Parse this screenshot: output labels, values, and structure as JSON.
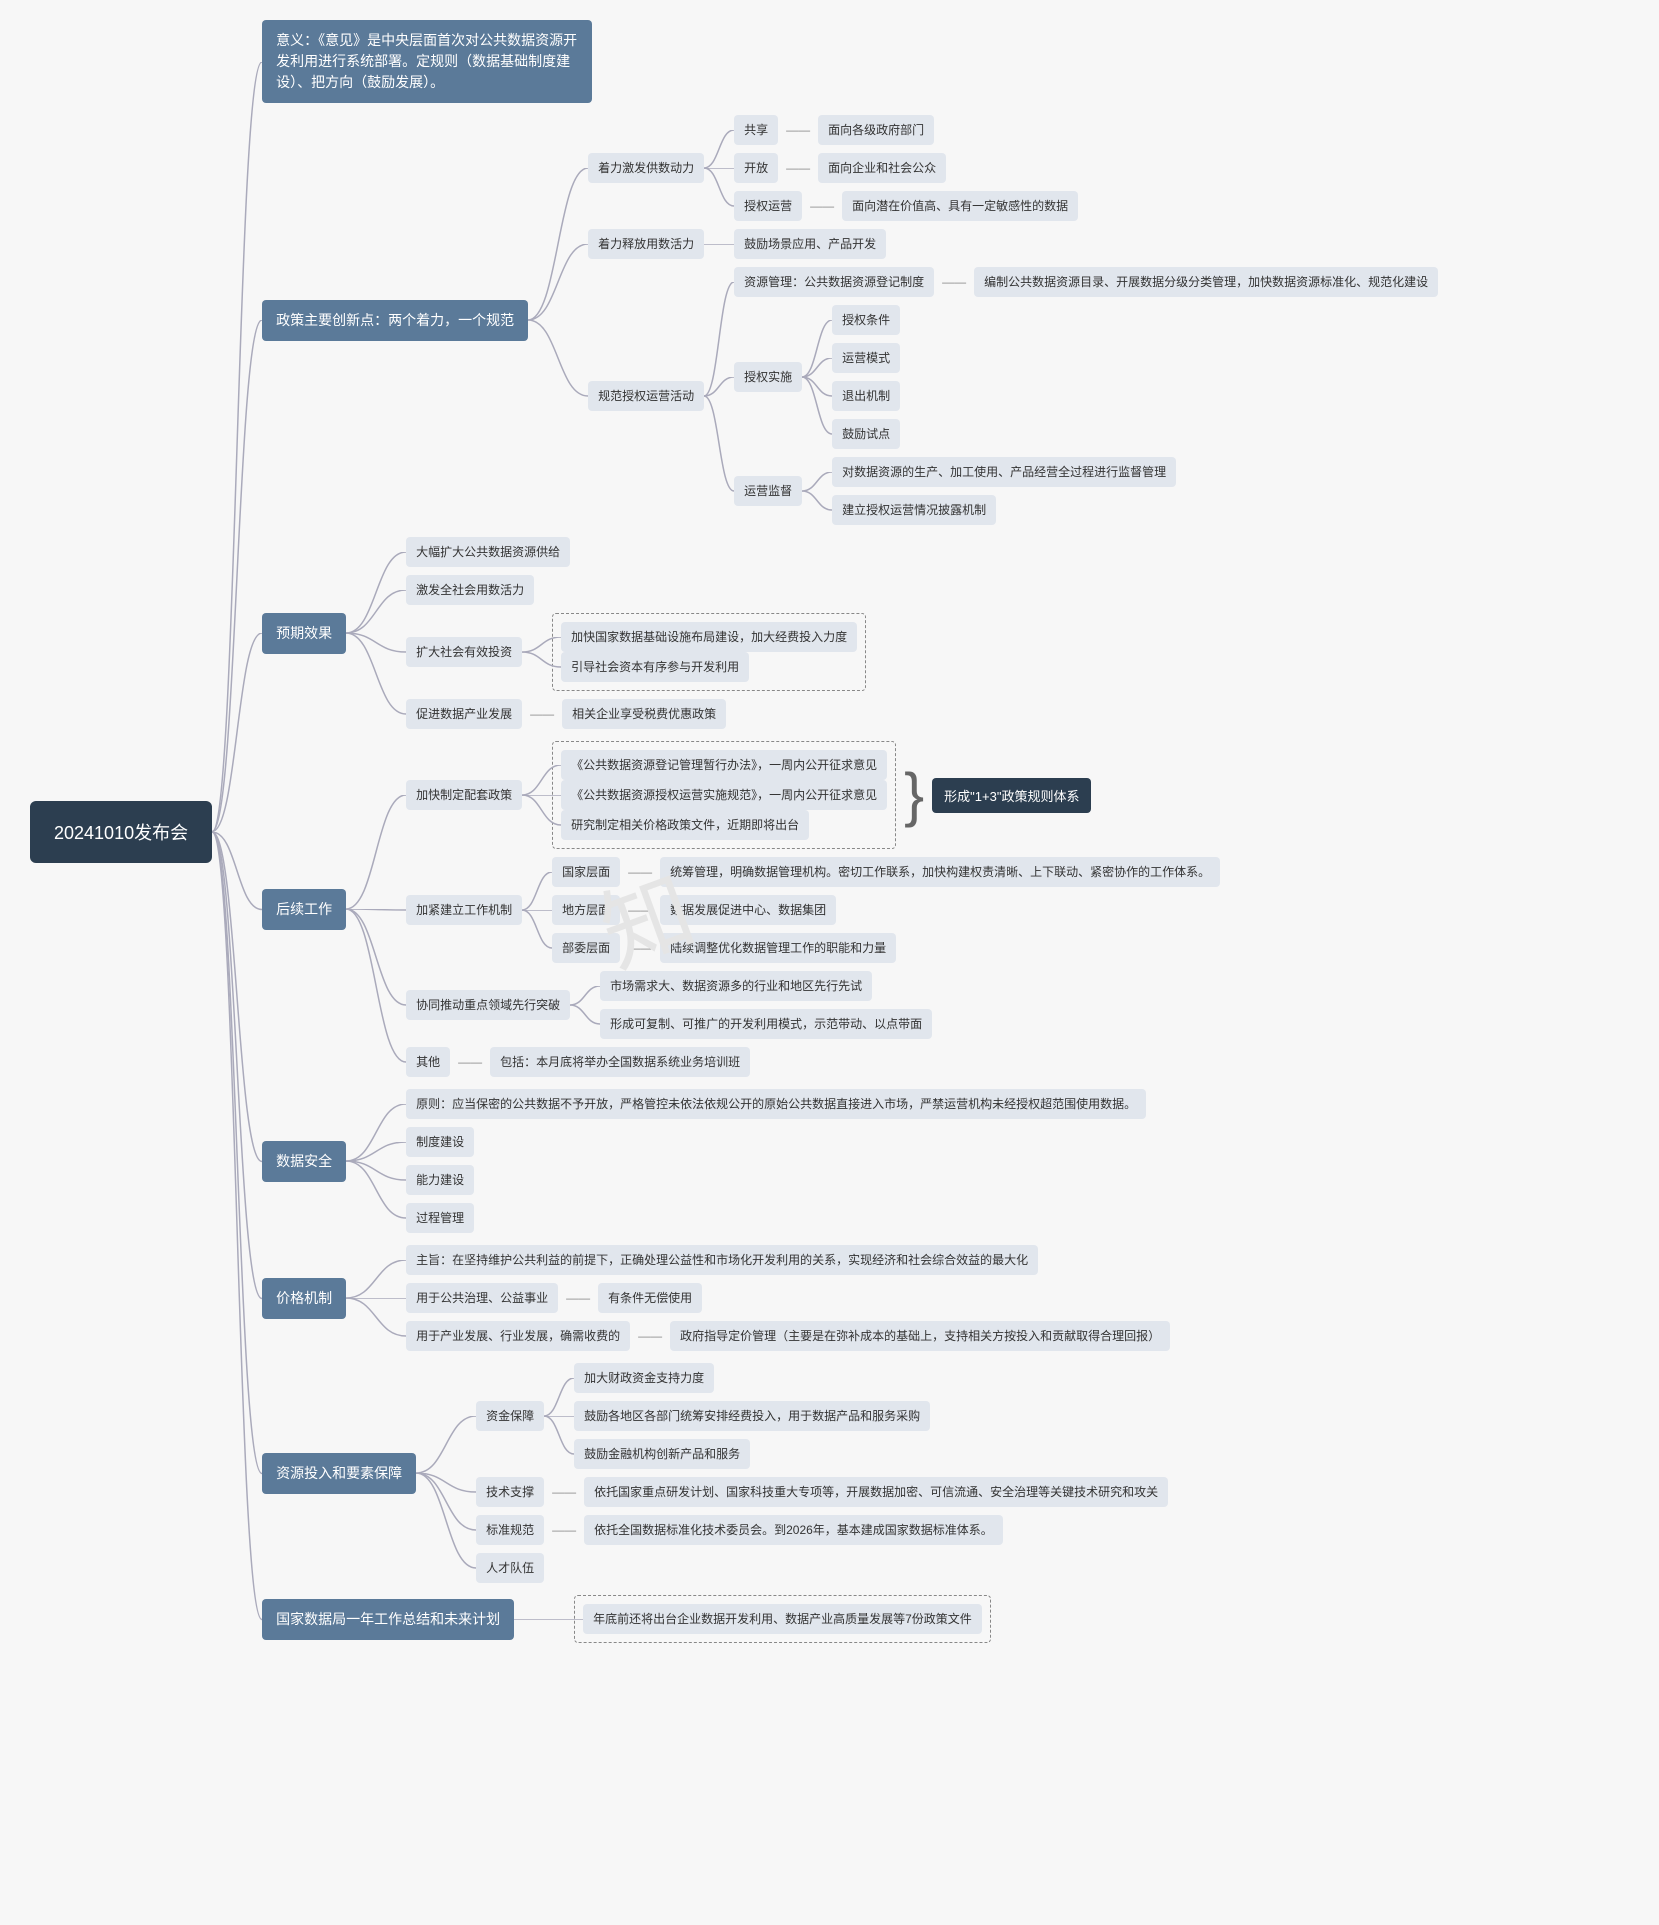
{
  "root": "20241010发布会",
  "colors": {
    "root": "#2c3e50",
    "lvl1": "#5b7a99",
    "leaf_bg": "#e1e6ed",
    "leaf_fg": "#333333",
    "page_bg": "#f7f7f7",
    "dashed": "#888888"
  },
  "fontsize": {
    "root": 18,
    "lvl1": 14,
    "leaf": 12
  },
  "significance": "意义：《意见》是中央层面首次对公共数据资源开发利用进行系统部署。定规则（数据基础制度建设）、把方向（鼓励发展）。",
  "innovations": {
    "title": "政策主要创新点：两个着力，一个规范",
    "items": [
      {
        "label": "着力激发供数动力",
        "children": [
          {
            "label": "共享",
            "desc": "面向各级政府部门"
          },
          {
            "label": "开放",
            "desc": "面向企业和社会公众"
          },
          {
            "label": "授权运营",
            "desc": "面向潜在价值高、具有一定敏感性的数据"
          }
        ]
      },
      {
        "label": "着力释放用数活力",
        "children": [
          {
            "label": "鼓励场景应用、产品开发"
          }
        ]
      },
      {
        "label": "规范授权运营活动",
        "children": [
          {
            "label": "资源管理：公共数据资源登记制度",
            "desc": "编制公共数据资源目录、开展数据分级分类管理，加快数据资源标准化、规范化建设"
          },
          {
            "label": "授权实施",
            "sub": [
              "授权条件",
              "运营模式",
              "退出机制",
              "鼓励试点"
            ]
          },
          {
            "label": "运营监督",
            "sub": [
              "对数据资源的生产、加工使用、产品经营全过程进行监督管理",
              "建立授权运营情况披露机制"
            ]
          }
        ]
      }
    ]
  },
  "expected": {
    "title": "预期效果",
    "items": [
      "大幅扩大公共数据资源供给",
      "激发全社会用数活力",
      {
        "label": "扩大社会有效投资",
        "sub": [
          "加快国家数据基础设施布局建设，加大经费投入力度",
          "引导社会资本有序参与开发利用"
        ]
      },
      {
        "label": "促进数据产业发展",
        "desc": "相关企业享受税费优惠政策"
      }
    ]
  },
  "followup": {
    "title": "后续工作",
    "items": [
      {
        "label": "加快制定配套政策",
        "dashed": true,
        "brace_result": "形成\"1+3\"政策规则体系",
        "sub": [
          "《公共数据资源登记管理暂行办法》，一周内公开征求意见",
          "《公共数据资源授权运营实施规范》，一周内公开征求意见",
          "研究制定相关价格政策文件，近期即将出台"
        ]
      },
      {
        "label": "加紧建立工作机制",
        "sub": [
          {
            "label": "国家层面",
            "desc": "统筹管理，明确数据管理机构。密切工作联系，加快构建权责清晰、上下联动、紧密协作的工作体系。"
          },
          {
            "label": "地方层面",
            "desc": "数据发展促进中心、数据集团"
          },
          {
            "label": "部委层面",
            "desc": "陆续调整优化数据管理工作的职能和力量"
          }
        ]
      },
      {
        "label": "协同推动重点领域先行突破",
        "sub": [
          "市场需求大、数据资源多的行业和地区先行先试",
          "形成可复制、可推广的开发利用模式，示范带动、以点带面"
        ]
      },
      {
        "label": "其他",
        "desc": "包括：本月底将举办全国数据系统业务培训班"
      }
    ]
  },
  "security": {
    "title": "数据安全",
    "items": [
      "原则：应当保密的公共数据不予开放，严格管控未依法依规公开的原始公共数据直接进入市场，严禁运营机构未经授权超范围使用数据。",
      "制度建设",
      "能力建设",
      "过程管理"
    ]
  },
  "pricing": {
    "title": "价格机制",
    "items": [
      "主旨：在坚持维护公共利益的前提下，正确处理公益性和市场化开发利用的关系，实现经济和社会综合效益的最大化",
      {
        "label": "用于公共治理、公益事业",
        "desc": "有条件无偿使用"
      },
      {
        "label": "用于产业发展、行业发展，确需收费的",
        "desc": "政府指导定价管理（主要是在弥补成本的基础上，支持相关方按投入和贡献取得合理回报）"
      }
    ]
  },
  "resources": {
    "title": "资源投入和要素保障",
    "items": [
      {
        "label": "资金保障",
        "sub": [
          "加大财政资金支持力度",
          "鼓励各地区各部门统筹安排经费投入，用于数据产品和服务采购",
          "鼓励金融机构创新产品和服务"
        ]
      },
      {
        "label": "技术支撑",
        "desc": "依托国家重点研发计划、国家科技重大专项等，开展数据加密、可信流通、安全治理等关键技术研究和攻关"
      },
      {
        "label": "标准规范",
        "desc": "依托全国数据标准化技术委员会。到2026年，基本建成国家数据标准体系。"
      },
      "人才队伍"
    ]
  },
  "bureau": {
    "title": "国家数据局一年工作总结和未来计划",
    "items": [
      "年底前还将出台企业数据开发利用、数据产业高质量发展等7份政策文件"
    ]
  }
}
